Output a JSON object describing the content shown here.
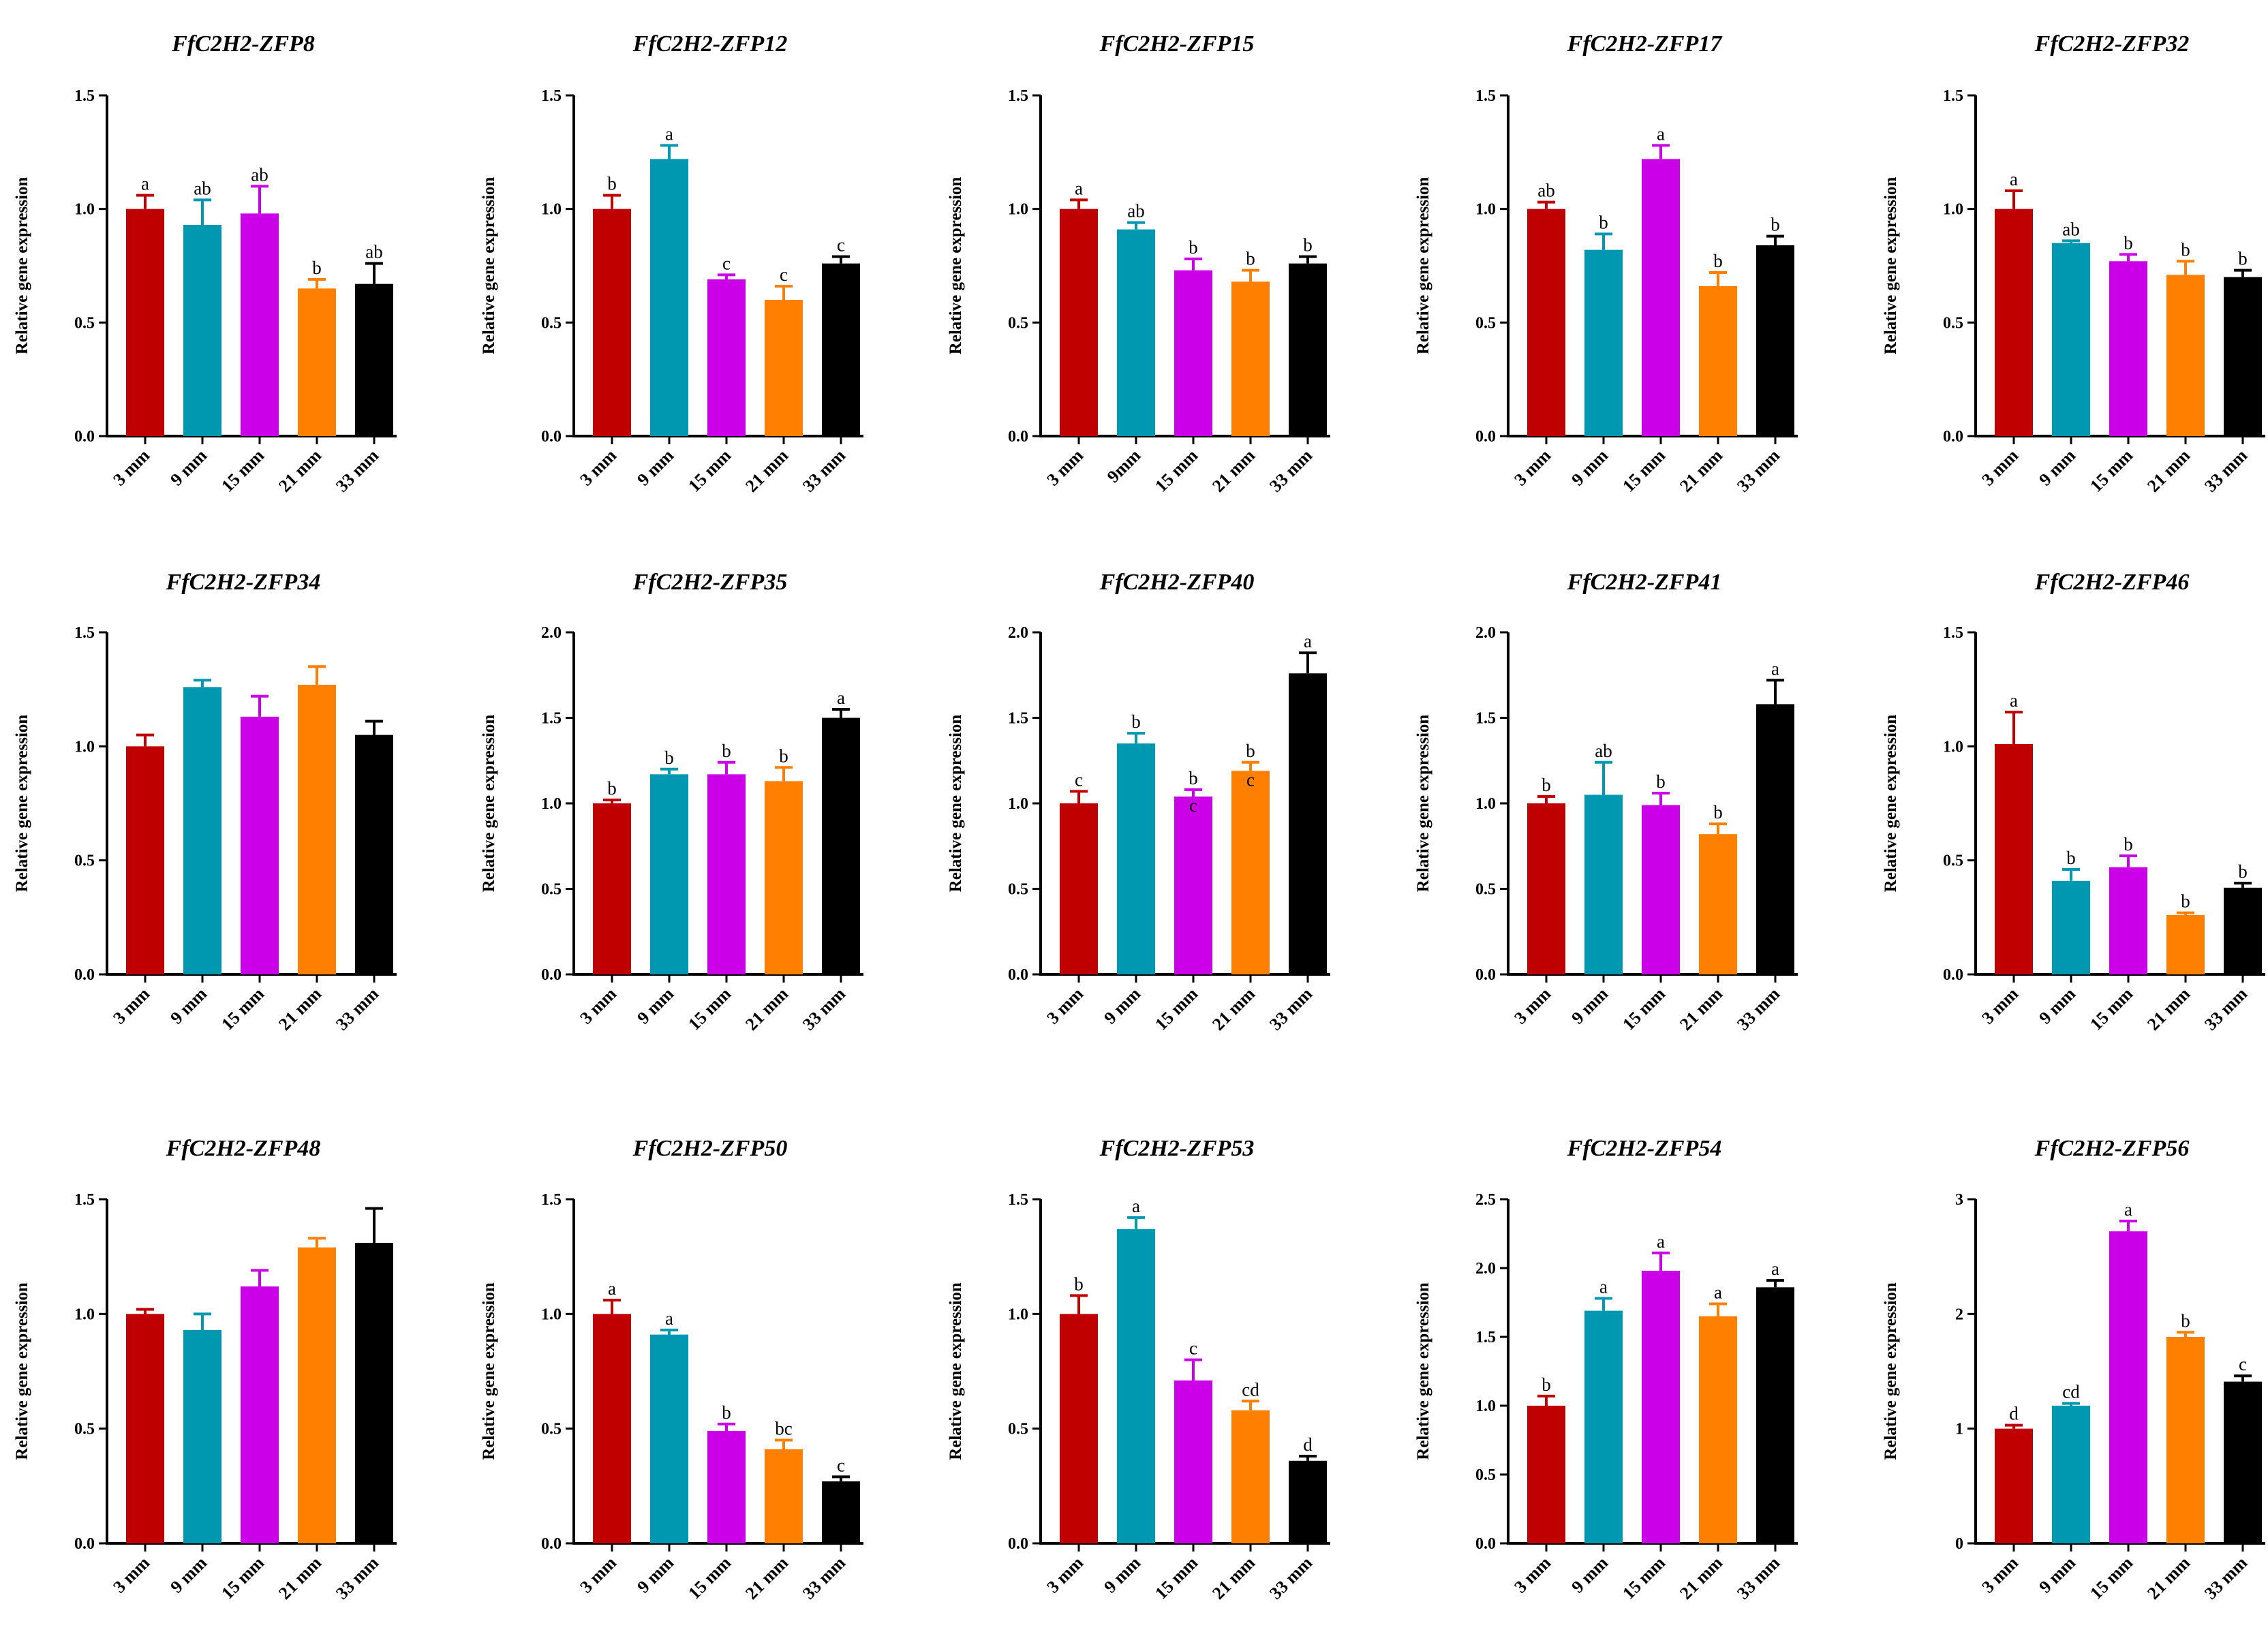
{
  "colors": {
    "red": "#c00000",
    "teal": "#0098b0",
    "magenta": "#cc00e8",
    "orange": "#ff8000",
    "black": "#000000"
  },
  "ylabel": "Relative gene expression",
  "chart_data": [
    {
      "type": "bar",
      "title": "FfC2H2-ZFP8",
      "categories": [
        "3 mm",
        "9 mm",
        "15 mm",
        "21 mm",
        "33 mm"
      ],
      "values": [
        1.0,
        0.93,
        0.98,
        0.65,
        0.67
      ],
      "errors": [
        0.06,
        0.11,
        0.12,
        0.04,
        0.09
      ],
      "letters": [
        "a",
        "ab",
        "ab",
        "b",
        "ab"
      ],
      "ylim": [
        0,
        1.5
      ],
      "yticks": [
        "0.0",
        "0.5",
        "1.0",
        "1.5"
      ]
    },
    {
      "type": "bar",
      "title": "FfC2H2-ZFP12",
      "categories": [
        "3 mm",
        "9 mm",
        "15 mm",
        "21 mm",
        "33 mm"
      ],
      "values": [
        1.0,
        1.22,
        0.69,
        0.6,
        0.76
      ],
      "errors": [
        0.06,
        0.06,
        0.02,
        0.06,
        0.03
      ],
      "letters": [
        "b",
        "a",
        "c",
        "c",
        "c"
      ],
      "ylim": [
        0,
        1.5
      ],
      "yticks": [
        "0.0",
        "0.5",
        "1.0",
        "1.5"
      ]
    },
    {
      "type": "bar",
      "title": "FfC2H2-ZFP15",
      "categories": [
        "3 mm",
        "9mm",
        "15 mm",
        "21 mm",
        "33 mm"
      ],
      "values": [
        1.0,
        0.91,
        0.73,
        0.68,
        0.76
      ],
      "errors": [
        0.04,
        0.03,
        0.05,
        0.05,
        0.03
      ],
      "letters": [
        "a",
        "ab",
        "b",
        "b",
        "b"
      ],
      "ylim": [
        0,
        1.5
      ],
      "yticks": [
        "0.0",
        "0.5",
        "1.0",
        "1.5"
      ]
    },
    {
      "type": "bar",
      "title": "FfC2H2-ZFP17",
      "categories": [
        "3 mm",
        "9 mm",
        "15 mm",
        "21 mm",
        "33 mm"
      ],
      "values": [
        1.0,
        0.82,
        1.22,
        0.66,
        0.84
      ],
      "errors": [
        0.03,
        0.07,
        0.06,
        0.06,
        0.04
      ],
      "letters": [
        "ab",
        "b",
        "a",
        "b",
        "b"
      ],
      "ylim": [
        0,
        1.5
      ],
      "yticks": [
        "0.0",
        "0.5",
        "1.0",
        "1.5"
      ]
    },
    {
      "type": "bar",
      "title": "FfC2H2-ZFP32",
      "categories": [
        "3 mm",
        "9 mm",
        "15 mm",
        "21 mm",
        "33 mm"
      ],
      "values": [
        1.0,
        0.85,
        0.77,
        0.71,
        0.7
      ],
      "errors": [
        0.08,
        0.01,
        0.03,
        0.06,
        0.03
      ],
      "letters": [
        "a",
        "ab",
        "b",
        "b",
        "b"
      ],
      "ylim": [
        0,
        1.5
      ],
      "yticks": [
        "0.0",
        "0.5",
        "1.0",
        "1.5"
      ]
    },
    {
      "type": "bar",
      "title": "FfC2H2-ZFP34",
      "categories": [
        "3 mm",
        "9 mm",
        "15 mm",
        "21 mm",
        "33 mm"
      ],
      "values": [
        1.0,
        1.26,
        1.13,
        1.27,
        1.05
      ],
      "errors": [
        0.05,
        0.03,
        0.09,
        0.08,
        0.06
      ],
      "letters": [
        "",
        "",
        "",
        "",
        ""
      ],
      "ylim": [
        0,
        1.5
      ],
      "yticks": [
        "0.0",
        "0.5",
        "1.0",
        "1.5"
      ]
    },
    {
      "type": "bar",
      "title": "FfC2H2-ZFP35",
      "categories": [
        "3 mm",
        "9 mm",
        "15 mm",
        "21 mm",
        "33 mm"
      ],
      "values": [
        1.0,
        1.17,
        1.17,
        1.13,
        1.5
      ],
      "errors": [
        0.02,
        0.03,
        0.07,
        0.08,
        0.05
      ],
      "letters": [
        "b",
        "b",
        "b",
        "b",
        "a"
      ],
      "ylim": [
        0,
        2.0
      ],
      "yticks": [
        "0.0",
        "0.5",
        "1.0",
        "1.5",
        "2.0"
      ]
    },
    {
      "type": "bar",
      "title": "FfC2H2-ZFP40",
      "categories": [
        "3 mm",
        "9 mm",
        "15 mm",
        "21 mm",
        "33 mm"
      ],
      "values": [
        1.0,
        1.35,
        1.04,
        1.19,
        1.76
      ],
      "errors": [
        0.07,
        0.06,
        0.04,
        0.05,
        0.12
      ],
      "letters": [
        "c",
        "b",
        "b",
        "b",
        "a"
      ],
      "letters_inside": [
        "",
        "",
        "c",
        "c",
        ""
      ],
      "ylim": [
        0,
        2.0
      ],
      "yticks": [
        "0.0",
        "0.5",
        "1.0",
        "1.5",
        "2.0"
      ]
    },
    {
      "type": "bar",
      "title": "FfC2H2-ZFP41",
      "categories": [
        "3 mm",
        "9 mm",
        "15 mm",
        "21 mm",
        "33 mm"
      ],
      "values": [
        1.0,
        1.05,
        0.99,
        0.82,
        1.58
      ],
      "errors": [
        0.04,
        0.19,
        0.07,
        0.06,
        0.14
      ],
      "letters": [
        "b",
        "ab",
        "b",
        "b",
        "a"
      ],
      "ylim": [
        0,
        2.0
      ],
      "yticks": [
        "0.0",
        "0.5",
        "1.0",
        "1.5",
        "2.0"
      ]
    },
    {
      "type": "bar",
      "title": "FfC2H2-ZFP46",
      "categories": [
        "3 mm",
        "9 mm",
        "15 mm",
        "21 mm",
        "33 mm"
      ],
      "values": [
        1.01,
        0.41,
        0.47,
        0.26,
        0.38
      ],
      "errors": [
        0.14,
        0.05,
        0.05,
        0.01,
        0.02
      ],
      "letters": [
        "a",
        "b",
        "b",
        "b",
        "b"
      ],
      "ylim": [
        0,
        1.5
      ],
      "yticks": [
        "0.0",
        "0.5",
        "1.0",
        "1.5"
      ]
    },
    {
      "type": "bar",
      "title": "FfC2H2-ZFP48",
      "categories": [
        "3 mm",
        "9 mm",
        "15 mm",
        "21 mm",
        "33 mm"
      ],
      "values": [
        1.0,
        0.93,
        1.12,
        1.29,
        1.31
      ],
      "errors": [
        0.02,
        0.07,
        0.07,
        0.04,
        0.15
      ],
      "letters": [
        "",
        "",
        "",
        "",
        ""
      ],
      "ylim": [
        0,
        1.5
      ],
      "yticks": [
        "0.0",
        "0.5",
        "1.0",
        "1.5"
      ]
    },
    {
      "type": "bar",
      "title": "FfC2H2-ZFP50",
      "categories": [
        "3 mm",
        "9 mm",
        "15 mm",
        "21 mm",
        "33 mm"
      ],
      "values": [
        1.0,
        0.91,
        0.49,
        0.41,
        0.27
      ],
      "errors": [
        0.06,
        0.02,
        0.03,
        0.04,
        0.02
      ],
      "letters": [
        "a",
        "a",
        "b",
        "bc",
        "c"
      ],
      "ylim": [
        0,
        1.5
      ],
      "yticks": [
        "0.0",
        "0.5",
        "1.0",
        "1.5"
      ]
    },
    {
      "type": "bar",
      "title": "FfC2H2-ZFP53",
      "categories": [
        "3 mm",
        "9 mm",
        "15 mm",
        "21 mm",
        "33 mm"
      ],
      "values": [
        1.0,
        1.37,
        0.71,
        0.58,
        0.36
      ],
      "errors": [
        0.08,
        0.05,
        0.09,
        0.04,
        0.02
      ],
      "letters": [
        "b",
        "a",
        "c",
        "cd",
        "d"
      ],
      "ylim": [
        0,
        1.5
      ],
      "yticks": [
        "0.0",
        "0.5",
        "1.0",
        "1.5"
      ]
    },
    {
      "type": "bar",
      "title": "FfC2H2-ZFP54",
      "categories": [
        "3 mm",
        "9 mm",
        "15 mm",
        "21 mm",
        "33 mm"
      ],
      "values": [
        1.0,
        1.69,
        1.98,
        1.65,
        1.86
      ],
      "errors": [
        0.07,
        0.09,
        0.13,
        0.09,
        0.05
      ],
      "letters": [
        "b",
        "a",
        "a",
        "a",
        "a"
      ],
      "ylim": [
        0,
        2.5
      ],
      "yticks": [
        "0.0",
        "0.5",
        "1.0",
        "1.5",
        "2.0",
        "2.5"
      ]
    },
    {
      "type": "bar",
      "title": "FfC2H2-ZFP56",
      "categories": [
        "3 mm",
        "9 mm",
        "15 mm",
        "21 mm",
        "33 mm"
      ],
      "values": [
        1.0,
        1.2,
        2.72,
        1.8,
        1.41
      ],
      "errors": [
        0.03,
        0.02,
        0.09,
        0.04,
        0.05
      ],
      "letters": [
        "d",
        "cd",
        "a",
        "b",
        "c"
      ],
      "ylim": [
        0,
        3
      ],
      "yticks": [
        "0",
        "1",
        "2",
        "3"
      ]
    }
  ]
}
